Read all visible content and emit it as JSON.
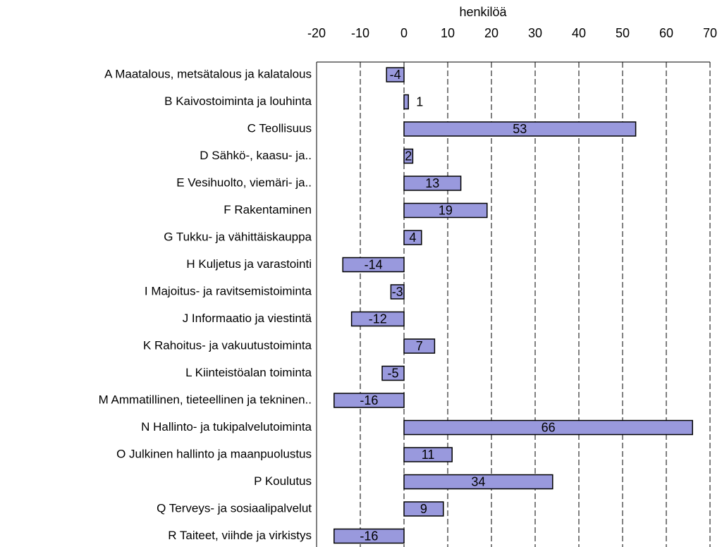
{
  "chart_data": {
    "type": "bar",
    "orientation": "horizontal",
    "x_label": "henkilöä",
    "categories": [
      "A Maatalous, metsätalous ja kalatalous",
      "B Kaivostoiminta ja louhinta",
      "C Teollisuus",
      "D Sähkö-, kaasu- ja..",
      "E Vesihuolto, viemäri- ja..",
      "F Rakentaminen",
      "G Tukku- ja vähittäiskauppa",
      "H Kuljetus ja varastointi",
      "I Majoitus- ja ravitsemistoiminta",
      "J Informaatio ja viestintä",
      "K Rahoitus- ja vakuutustoiminta",
      "L Kiinteistöalan toiminta",
      "M Ammatillinen, tieteellinen ja tekninen..",
      "N Hallinto- ja tukipalvelutoiminta",
      "O Julkinen hallinto ja maanpuolustus",
      "P Koulutus",
      "Q Terveys- ja sosiaalipalvelut",
      "R Taiteet, viihde ja virkistys"
    ],
    "values": [
      -4,
      1,
      53,
      2,
      13,
      19,
      4,
      -14,
      -3,
      -12,
      7,
      -5,
      -16,
      66,
      11,
      34,
      9,
      -16
    ],
    "color": "#9999dd",
    "xlim": [
      -20,
      70
    ],
    "xticks": [
      -20,
      -10,
      0,
      10,
      20,
      30,
      40,
      50,
      60,
      70
    ],
    "grid": true
  }
}
